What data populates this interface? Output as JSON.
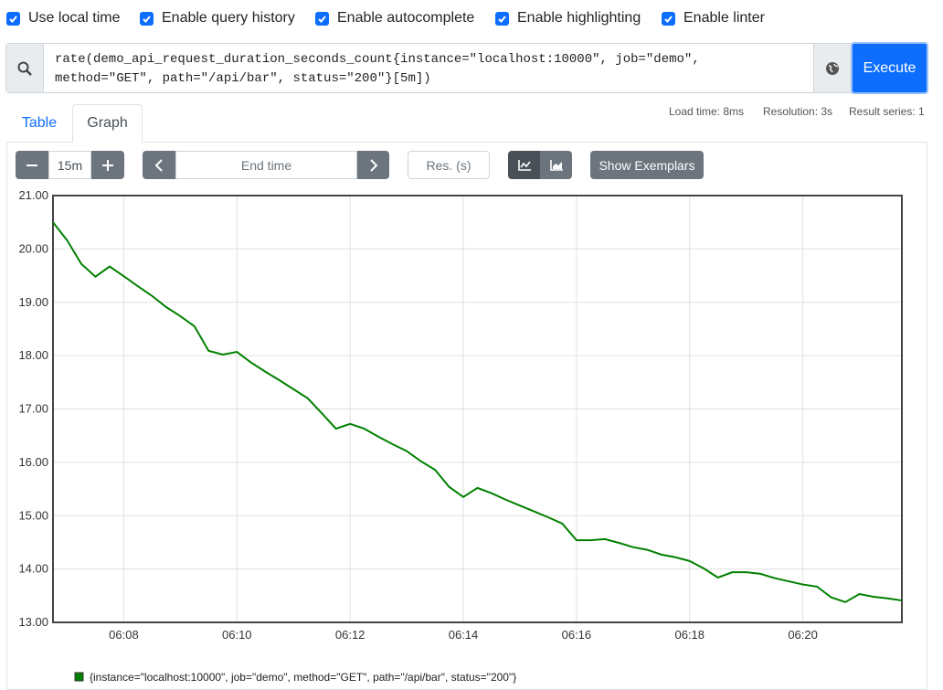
{
  "settings": [
    "Use local time",
    "Enable query history",
    "Enable autocomplete",
    "Enable highlighting",
    "Enable linter"
  ],
  "query": "rate(demo_api_request_duration_seconds_count{instance=\"localhost:10000\", job=\"demo\", method=\"GET\", path=\"/api/bar\", status=\"200\"}[5m])",
  "execute": "Execute",
  "tabs": [
    "Table",
    "Graph"
  ],
  "stats": [
    "Load time: 8ms",
    "Resolution: 3s",
    "Result series: 1"
  ],
  "controls": {
    "range": "15m",
    "end_time": "End time",
    "resolution": "Res. (s)",
    "exemplars": "Show Exemplars"
  },
  "chart_data": {
    "type": "line",
    "x": [
      6.75,
      7,
      7.25,
      7.5,
      7.75,
      8,
      8.25,
      8.5,
      8.75,
      9,
      9.25,
      9.5,
      9.75,
      10,
      10.25,
      10.5,
      10.75,
      11,
      11.25,
      11.5,
      11.75,
      12,
      12.25,
      12.5,
      12.75,
      13,
      13.25,
      13.5,
      13.75,
      14,
      14.25,
      14.5,
      14.75,
      15,
      15.25,
      15.5,
      15.75,
      16,
      16.25,
      16.5,
      16.75,
      17,
      17.25,
      17.5,
      17.75,
      18,
      18.25,
      18.5,
      18.75,
      19,
      19.25,
      19.5,
      19.75,
      20,
      20.25,
      20.5,
      20.75,
      21,
      21.25,
      21.5,
      21.75
    ],
    "series": [
      {
        "name": "{instance=\"localhost:10000\", job=\"demo\", method=\"GET\", path=\"/api/bar\", status=\"200\"}",
        "color": "#008000",
        "values": [
          20.5,
          20.16,
          19.72,
          19.48,
          19.67,
          19.49,
          19.3,
          19.12,
          18.91,
          18.74,
          18.55,
          18.09,
          18.02,
          18.07,
          17.87,
          17.7,
          17.54,
          17.37,
          17.2,
          16.92,
          16.63,
          16.72,
          16.63,
          16.48,
          16.34,
          16.21,
          16.02,
          15.86,
          15.54,
          15.35,
          15.52,
          15.42,
          15.3,
          15.19,
          15.08,
          14.97,
          14.85,
          14.54,
          14.54,
          14.56,
          14.49,
          14.41,
          14.36,
          14.27,
          14.22,
          14.15,
          14.01,
          13.84,
          13.94,
          13.94,
          13.91,
          13.83,
          13.77,
          13.71,
          13.67,
          13.47,
          13.38,
          13.53,
          13.48,
          13.45,
          13.41
        ]
      }
    ],
    "xlim": [
      6.75,
      21.75
    ],
    "ylim": [
      13,
      21
    ],
    "xticks": [
      {
        "value": 8,
        "label": "06:08"
      },
      {
        "value": 10,
        "label": "06:10"
      },
      {
        "value": 12,
        "label": "06:12"
      },
      {
        "value": 14,
        "label": "06:14"
      },
      {
        "value": 16,
        "label": "06:16"
      },
      {
        "value": 18,
        "label": "06:18"
      },
      {
        "value": 20,
        "label": "06:20"
      }
    ],
    "yticks": [
      {
        "value": 13,
        "label": "13.00"
      },
      {
        "value": 14,
        "label": "14.00"
      },
      {
        "value": 15,
        "label": "15.00"
      },
      {
        "value": 16,
        "label": "16.00"
      },
      {
        "value": 17,
        "label": "17.00"
      },
      {
        "value": 18,
        "label": "18.00"
      },
      {
        "value": 19,
        "label": "19.00"
      },
      {
        "value": 20,
        "label": "20.00"
      },
      {
        "value": 21,
        "label": "21.00"
      }
    ],
    "grid": true
  }
}
